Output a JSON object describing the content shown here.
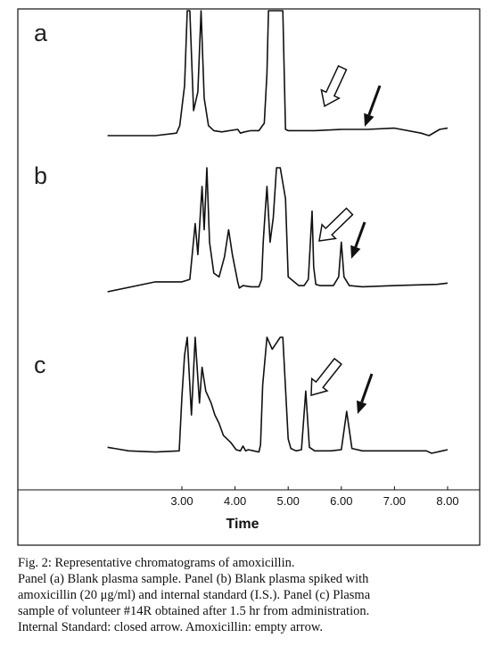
{
  "chart_data": {
    "type": "line",
    "title": "",
    "xlabel": "Time",
    "ylabel": "",
    "xlim": [
      1.6,
      8.1
    ],
    "xticks": [
      "3.00",
      "4.00",
      "5.00",
      "6.00",
      "7.00",
      "8.00"
    ],
    "grid": false,
    "panels": [
      {
        "label": "a",
        "series": [
          {
            "x": [
              1.6,
              2.5,
              2.9,
              2.96,
              3.05,
              3.1,
              3.15,
              3.22,
              3.3,
              3.36,
              3.42,
              3.5,
              3.6,
              3.75,
              4.05,
              4.1,
              4.18,
              4.3,
              4.45,
              4.55,
              4.6,
              4.63,
              4.9,
              4.95,
              5.0,
              5.5,
              6.0,
              6.5,
              7.0,
              7.5,
              7.65,
              7.85,
              8.0
            ],
            "y": [
              0.0,
              0.0,
              0.02,
              0.08,
              0.4,
              1.0,
              1.0,
              0.2,
              0.35,
              1.0,
              0.3,
              0.08,
              0.04,
              0.03,
              0.05,
              0.02,
              0.03,
              0.04,
              0.04,
              0.1,
              0.5,
              1.0,
              1.0,
              0.05,
              0.04,
              0.04,
              0.05,
              0.05,
              0.06,
              0.02,
              0.0,
              0.05,
              0.06
            ]
          }
        ]
      },
      {
        "label": "b",
        "series": [
          {
            "x": [
              1.6,
              2.5,
              3.0,
              3.15,
              3.25,
              3.3,
              3.38,
              3.42,
              3.47,
              3.52,
              3.6,
              3.7,
              3.8,
              3.88,
              3.95,
              4.05,
              4.08,
              4.15,
              4.3,
              4.45,
              4.5,
              4.53,
              4.56,
              4.6,
              4.66,
              4.72,
              4.78,
              4.85,
              4.95,
              5.0,
              5.2,
              5.3,
              5.38,
              5.45,
              5.48,
              5.52,
              5.6,
              5.85,
              5.95,
              6.0,
              6.05,
              6.15,
              6.4,
              7.0,
              7.8,
              8.0
            ],
            "y": [
              0.0,
              0.08,
              0.08,
              0.1,
              0.55,
              0.3,
              0.85,
              0.5,
              1.0,
              0.4,
              0.15,
              0.12,
              0.28,
              0.5,
              0.3,
              0.08,
              0.03,
              0.05,
              0.04,
              0.04,
              0.1,
              0.4,
              0.6,
              0.85,
              0.4,
              0.6,
              1.0,
              1.0,
              0.75,
              0.12,
              0.05,
              0.05,
              0.1,
              0.65,
              0.2,
              0.06,
              0.05,
              0.05,
              0.12,
              0.4,
              0.12,
              0.05,
              0.04,
              0.05,
              0.06,
              0.07
            ]
          }
        ]
      },
      {
        "label": "c",
        "series": [
          {
            "x": [
              1.6,
              2.0,
              2.5,
              2.95,
              3.0,
              3.05,
              3.1,
              3.18,
              3.25,
              3.33,
              3.38,
              3.45,
              3.55,
              3.62,
              3.7,
              3.78,
              3.85,
              3.92,
              4.02,
              4.1,
              4.15,
              4.2,
              4.25,
              4.35,
              4.45,
              4.48,
              4.52,
              4.6,
              4.7,
              4.85,
              4.9,
              5.0,
              5.05,
              5.15,
              5.25,
              5.33,
              5.4,
              5.5,
              5.8,
              6.0,
              6.1,
              6.2,
              6.4,
              7.0,
              7.6,
              7.7,
              7.9,
              8.0
            ],
            "y": [
              0.08,
              0.05,
              0.04,
              0.05,
              0.5,
              0.85,
              1.0,
              0.35,
              1.0,
              0.45,
              0.75,
              0.55,
              0.45,
              0.35,
              0.28,
              0.18,
              0.15,
              0.12,
              0.06,
              0.05,
              0.09,
              0.05,
              0.06,
              0.05,
              0.04,
              0.1,
              0.6,
              1.0,
              0.9,
              1.0,
              1.0,
              0.15,
              0.07,
              0.05,
              0.06,
              0.55,
              0.08,
              0.05,
              0.05,
              0.06,
              0.38,
              0.07,
              0.05,
              0.05,
              0.05,
              0.03,
              0.05,
              0.06
            ]
          }
        ]
      }
    ],
    "annotations": [
      "closed arrow: internal standard peak",
      "empty arrow: amoxicillin peak"
    ]
  },
  "caption": {
    "lines": [
      "Fig. 2: Representative chromatograms of amoxicillin.",
      "Panel (a) Blank plasma sample. Panel (b) Blank plasma spiked with",
      "amoxicillin (20 μg/ml) and internal standard (I.S.). Panel (c) Plasma",
      "sample of volunteer #14R obtained after 1.5 hr from administration.",
      "Internal Standard: closed arrow. Amoxicillin: empty arrow."
    ]
  }
}
